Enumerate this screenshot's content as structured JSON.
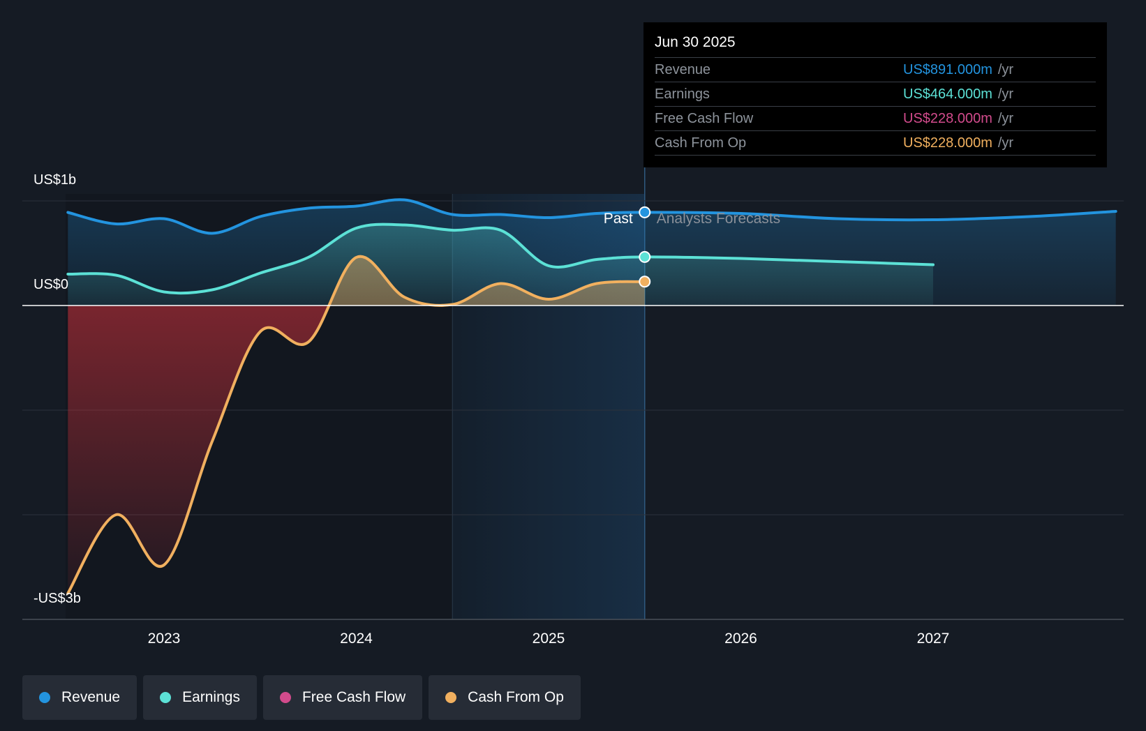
{
  "chart_data": {
    "type": "line",
    "title": "",
    "y_axis_labels": [
      "US$1b",
      "US$0",
      "-US$3b"
    ],
    "ylim": [
      -3000,
      1000
    ],
    "x_ticks": [
      "2023",
      "2024",
      "2025",
      "2026",
      "2027"
    ],
    "x_range": [
      2022.5,
      2027.95
    ],
    "divider_labels": {
      "past": "Past",
      "forecast": "Analysts Forecasts"
    },
    "divider_x": 2025.5,
    "series": [
      {
        "name": "Revenue",
        "color": "#2394df",
        "points": [
          [
            2022.5,
            890
          ],
          [
            2022.75,
            780
          ],
          [
            2023.0,
            830
          ],
          [
            2023.25,
            690
          ],
          [
            2023.5,
            850
          ],
          [
            2023.75,
            930
          ],
          [
            2024.0,
            950
          ],
          [
            2024.25,
            1010
          ],
          [
            2024.5,
            870
          ],
          [
            2024.75,
            870
          ],
          [
            2025.0,
            840
          ],
          [
            2025.25,
            880
          ],
          [
            2025.5,
            891
          ],
          [
            2026.0,
            880
          ],
          [
            2026.5,
            830
          ],
          [
            2027.0,
            820
          ],
          [
            2027.5,
            850
          ],
          [
            2027.95,
            900
          ]
        ]
      },
      {
        "name": "Earnings",
        "color": "#5ce1d6",
        "points": [
          [
            2022.5,
            300
          ],
          [
            2022.75,
            290
          ],
          [
            2023.0,
            130
          ],
          [
            2023.25,
            150
          ],
          [
            2023.5,
            310
          ],
          [
            2023.75,
            460
          ],
          [
            2024.0,
            740
          ],
          [
            2024.25,
            770
          ],
          [
            2024.5,
            720
          ],
          [
            2024.75,
            720
          ],
          [
            2025.0,
            380
          ],
          [
            2025.25,
            440
          ],
          [
            2025.5,
            464
          ],
          [
            2026.0,
            450
          ],
          [
            2026.5,
            420
          ],
          [
            2027.0,
            390
          ]
        ]
      },
      {
        "name": "Free Cash Flow",
        "color": "#d24b8c",
        "points": []
      },
      {
        "name": "Cash From Op",
        "color": "#f1b05f",
        "points": [
          [
            2022.5,
            -2750
          ],
          [
            2022.75,
            -2000
          ],
          [
            2023.0,
            -2480
          ],
          [
            2023.25,
            -1300
          ],
          [
            2023.5,
            -250
          ],
          [
            2023.75,
            -350
          ],
          [
            2024.0,
            460
          ],
          [
            2024.25,
            80
          ],
          [
            2024.5,
            10
          ],
          [
            2024.75,
            210
          ],
          [
            2025.0,
            60
          ],
          [
            2025.25,
            210
          ],
          [
            2025.5,
            228
          ]
        ]
      }
    ]
  },
  "tooltip": {
    "date": "Jun 30 2025",
    "unit": "/yr",
    "rows": [
      {
        "label": "Revenue",
        "value": "US$891.000m",
        "color": "#2394df"
      },
      {
        "label": "Earnings",
        "value": "US$464.000m",
        "color": "#5ce1d6"
      },
      {
        "label": "Free Cash Flow",
        "value": "US$228.000m",
        "color": "#d24b8c"
      },
      {
        "label": "Cash From Op",
        "value": "US$228.000m",
        "color": "#f1b05f"
      }
    ]
  },
  "legend": [
    {
      "label": "Revenue",
      "color": "#2394df"
    },
    {
      "label": "Earnings",
      "color": "#5ce1d6"
    },
    {
      "label": "Free Cash Flow",
      "color": "#d24b8c"
    },
    {
      "label": "Cash From Op",
      "color": "#f1b05f"
    }
  ]
}
